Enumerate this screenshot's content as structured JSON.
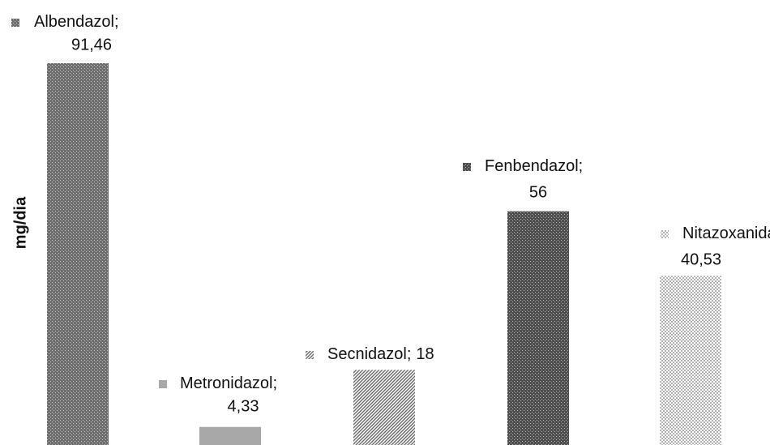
{
  "chart_data": {
    "type": "bar",
    "ylabel": "mg/dia",
    "categories": [
      "Albendazol",
      "Metronidazol",
      "Secnidazol",
      "Fenbendazol",
      "Nitazoxanida"
    ],
    "values": [
      91.46,
      4.33,
      18,
      56,
      40.53
    ],
    "value_labels": [
      "91,46",
      "4,33",
      "18",
      "56",
      "40,53"
    ],
    "label_separator": ";",
    "colors": [
      "#6e6e6e",
      "#a8a8a8",
      "#6a6a6a",
      "#4e4e4e",
      "#b4b4b4"
    ],
    "patterns": [
      "dots",
      "solid",
      "hatch",
      "dots",
      "checks"
    ]
  }
}
